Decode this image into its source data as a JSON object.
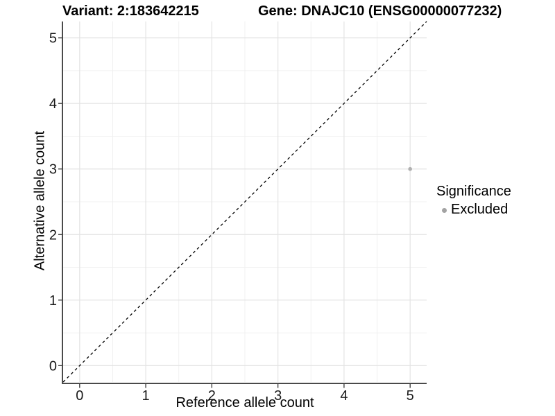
{
  "chart_data": {
    "type": "scatter",
    "title_left": "Variant: 2:183642215",
    "title_right": "Gene: DNAJC10 (ENSG00000077232)",
    "xlabel": "Reference allele count",
    "ylabel": "Alternative allele count",
    "xlim": [
      0,
      5
    ],
    "ylim": [
      0,
      5
    ],
    "x_ticks": [
      0,
      1,
      2,
      3,
      4,
      5
    ],
    "y_ticks": [
      0,
      1,
      2,
      3,
      4,
      5
    ],
    "grid": {
      "major": true,
      "minor": true
    },
    "reference_line": {
      "kind": "y=x identity",
      "style": "dashed",
      "color": "#000000"
    },
    "series": [
      {
        "name": "Excluded",
        "color": "#b0b0b0",
        "points": [
          [
            5,
            3
          ]
        ]
      }
    ],
    "legend": {
      "position": "right",
      "title": "Significance",
      "items": [
        {
          "label": "Excluded",
          "color": "#a3a3a3"
        }
      ]
    }
  },
  "colors": {
    "background": "#ffffff",
    "grid_major": "#e3e3e3",
    "grid_minor": "#f0f0f0",
    "axis_line": "#4a4a4a",
    "tick_mark": "#333333",
    "tick_label": "#1a1a1a",
    "title_text": "#000000"
  }
}
